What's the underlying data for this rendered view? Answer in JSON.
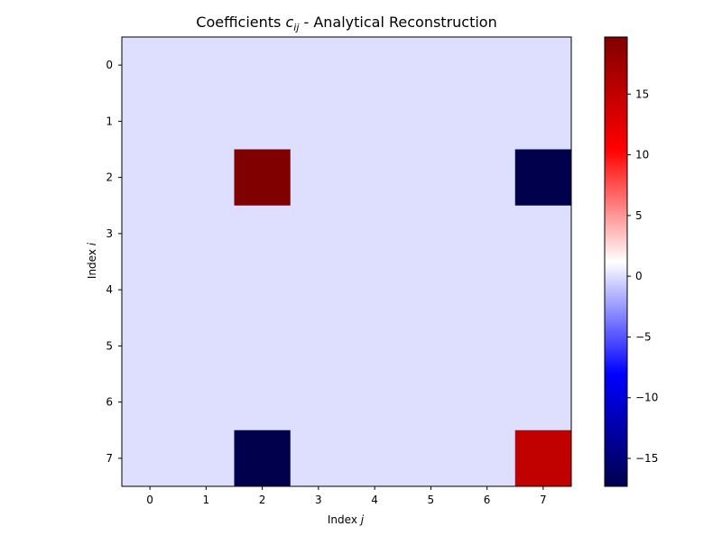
{
  "chart_data": {
    "type": "heatmap",
    "title": "Coefficients ",
    "title_math": "c",
    "title_math_sub": "ij",
    "title_tail": " - Analytical Reconstruction",
    "xlabel": "Index ",
    "xlabel_math": "j",
    "ylabel": "Index ",
    "ylabel_math": "i",
    "x_ticks": [
      "0",
      "1",
      "2",
      "3",
      "4",
      "5",
      "6",
      "7"
    ],
    "y_ticks": [
      "0",
      "1",
      "2",
      "3",
      "4",
      "5",
      "6",
      "7"
    ],
    "values": [
      [
        0,
        0,
        0,
        0,
        0,
        0,
        0,
        0
      ],
      [
        0,
        0,
        0,
        0,
        0,
        0,
        0,
        0
      ],
      [
        0,
        0,
        19.7,
        0,
        0,
        0,
        0,
        -17.3
      ],
      [
        0,
        0,
        0,
        0,
        0,
        0,
        0,
        0
      ],
      [
        0,
        0,
        0,
        0,
        0,
        0,
        0,
        0
      ],
      [
        0,
        0,
        0,
        0,
        0,
        0,
        0,
        0
      ],
      [
        0,
        0,
        0,
        0,
        0,
        0,
        0,
        0
      ],
      [
        0,
        0,
        -17.3,
        0,
        0,
        0,
        0,
        15.0
      ]
    ],
    "colormap": "seismic",
    "colorbar": {
      "vmin": -17.3,
      "vmax": 19.7,
      "ticks": [
        -15,
        -10,
        -5,
        0,
        5,
        10,
        15
      ],
      "tick_labels": [
        "−15",
        "−10",
        "−5",
        "0",
        "5",
        "10",
        "15"
      ]
    },
    "grid": false,
    "legend": "none"
  }
}
